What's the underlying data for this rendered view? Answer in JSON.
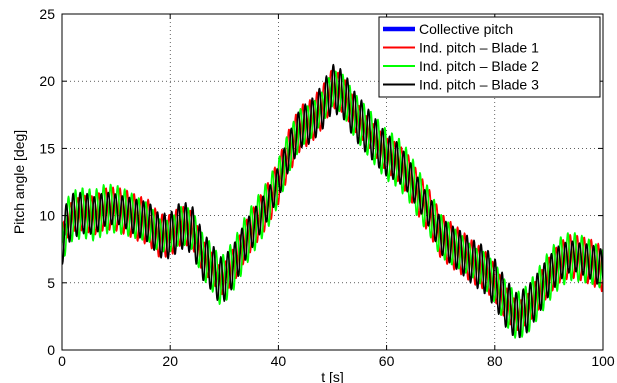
{
  "chart_data": {
    "type": "line",
    "xlabel": "t [s]",
    "ylabel": "Pitch angle [deg]",
    "xlim": [
      0,
      100
    ],
    "ylim": [
      0,
      25
    ],
    "xticks": [
      0,
      20,
      40,
      60,
      80,
      100
    ],
    "yticks": [
      0,
      5,
      10,
      15,
      20,
      25
    ],
    "grid": "dotted",
    "legend_position": "top-right",
    "series": [
      {
        "name": "Collective pitch",
        "color": "#0000ff",
        "style": "thick",
        "x": [
          0,
          1,
          2,
          4,
          6,
          8,
          10,
          12,
          14,
          16,
          18,
          20,
          22,
          24,
          26,
          28,
          29,
          30,
          32,
          34,
          36,
          38,
          40,
          42,
          44,
          46,
          48,
          50,
          52,
          54,
          56,
          58,
          60,
          62,
          64,
          66,
          68,
          70,
          72,
          74,
          76,
          78,
          80,
          82,
          84,
          86,
          88,
          90,
          92,
          94,
          96,
          98,
          100
        ],
        "y": [
          8.0,
          9.5,
          10.0,
          10.2,
          10.0,
          10.5,
          10.5,
          10.2,
          9.8,
          9.5,
          8.5,
          8.5,
          9.3,
          9.0,
          7.0,
          6.0,
          5.2,
          5.3,
          6.5,
          8.2,
          9.5,
          10.8,
          12.5,
          14.8,
          16.5,
          17.0,
          18.0,
          19.5,
          19.0,
          17.5,
          16.5,
          15.5,
          14.5,
          14.0,
          13.0,
          11.5,
          10.2,
          8.5,
          7.8,
          7.2,
          6.5,
          6.0,
          5.0,
          3.5,
          2.5,
          3.0,
          4.2,
          5.5,
          6.5,
          7.0,
          6.8,
          6.5,
          6.0
        ]
      },
      {
        "name": "Ind. pitch – Blade 1",
        "color": "#ff0000",
        "amplitude": 1.7,
        "period": 1.3,
        "phase": 0.0
      },
      {
        "name": "Ind. pitch – Blade 2",
        "color": "#00ff00",
        "amplitude": 1.9,
        "period": 1.3,
        "phase": 2.094
      },
      {
        "name": "Ind. pitch – Blade 3",
        "color": "#000000",
        "amplitude": 1.8,
        "period": 1.3,
        "phase": 4.189
      }
    ]
  }
}
